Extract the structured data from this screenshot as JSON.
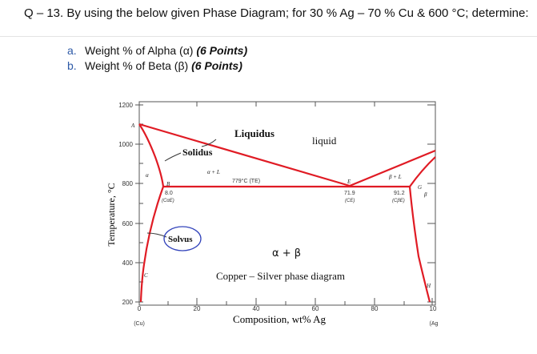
{
  "question": {
    "title": "Q – 13. By using the below given Phase Diagram; for 30 % Ag – 70 % Cu & 600 °C; determine:",
    "items": [
      {
        "marker": "a.",
        "text": "Weight % of Alpha (α) ",
        "points": "(6 Points)"
      },
      {
        "marker": "b.",
        "text": "Weight % of Beta (β) ",
        "points": "(6 Points)"
      }
    ]
  },
  "diagram": {
    "y_axis_label": "Temperature, °C",
    "x_axis_label": "Composition, wt% Ag",
    "y_ticks": [
      "1200",
      "1000",
      "800",
      "600",
      "400",
      "200"
    ],
    "x_ticks": [
      "0",
      "20",
      "40",
      "60",
      "80",
      "10"
    ],
    "x_end_labels": {
      "left": "(Cu)",
      "right": "(Ag"
    },
    "region_labels": {
      "liquidus": "Liquidus",
      "solidus": "Solidus",
      "solvus": "Solvus",
      "liquid": "liquid",
      "alpha": "α",
      "alpha_liquid": "α + L",
      "beta_liquid": "β + L",
      "beta": "β",
      "alpha_beta": "α + β",
      "title": "Copper – Silver phase diagram"
    },
    "points": {
      "A": "A",
      "B": "B",
      "C": "C",
      "E": "E",
      "G": "G",
      "H": "H"
    },
    "annotations": {
      "eutectic_temp": "779°C (TE)",
      "alpha_comp": "8.0",
      "alpha_comp_sub": "(CαE)",
      "eutectic_comp": "71.9",
      "eutectic_comp_sub": "(CE)",
      "beta_comp": "91.2",
      "beta_comp_sub": "(CβE)"
    },
    "colors": {
      "phase_lines": "#e01b24",
      "solvus_circle": "#3344bb",
      "axes": "#555555"
    }
  }
}
